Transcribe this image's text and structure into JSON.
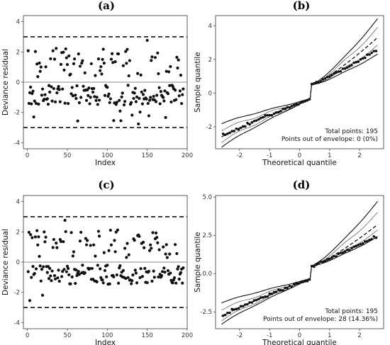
{
  "chart_data": [
    {
      "panel": "(a)",
      "type": "scatter",
      "xlabel": "Index",
      "ylabel": "Deviance residual",
      "xlim": [
        -5,
        200
      ],
      "ylim": [
        -4.4,
        4.4
      ],
      "xticks": [
        0,
        50,
        100,
        150,
        200
      ],
      "yticks": [
        -4,
        -2,
        0,
        2,
        4
      ],
      "reference_lines": [
        {
          "y": 3,
          "style": "dashed"
        },
        {
          "y": -3,
          "style": "dashed"
        },
        {
          "y": 0,
          "style": "solid-gray"
        }
      ],
      "n_points": 195,
      "seed": 11
    },
    {
      "panel": "(b)",
      "type": "line",
      "xlabel": "Theoretical quantile",
      "ylabel": "Sample quantile",
      "xlim": [
        -2.8,
        2.8
      ],
      "ylim": [
        -3.3,
        4.6
      ],
      "xticks": [
        -2,
        -1,
        0,
        1,
        2
      ],
      "yticks": [
        -2,
        0,
        2,
        4
      ],
      "envelope": {
        "lower_end": [
          -1.8,
          2.3
        ],
        "upper_end": [
          -3.2,
          4.4
        ],
        "median_end": [
          -2.6,
          3.3
        ]
      },
      "annotations": [
        "Total points: 195",
        "Points out of envelope: 0 (0%)"
      ],
      "seed": 11
    },
    {
      "panel": "(c)",
      "type": "scatter",
      "xlabel": "Index",
      "ylabel": "Deviance residual",
      "xlim": [
        -5,
        200
      ],
      "ylim": [
        -4.4,
        4.4
      ],
      "xticks": [
        0,
        50,
        100,
        150,
        200
      ],
      "yticks": [
        -4,
        -2,
        0,
        2,
        4
      ],
      "reference_lines": [
        {
          "y": 3,
          "style": "dashed"
        },
        {
          "y": -3,
          "style": "dashed"
        },
        {
          "y": 0,
          "style": "solid-gray"
        }
      ],
      "n_points": 195,
      "seed": 23
    },
    {
      "panel": "(d)",
      "type": "line",
      "xlabel": "Theoretical quantile",
      "ylabel": "Sample quantile",
      "xlim": [
        -2.8,
        2.8
      ],
      "ylim": [
        -3.6,
        5.1
      ],
      "xticks": [
        -2,
        -1,
        0,
        1,
        2
      ],
      "yticks": [
        -2.5,
        0.0,
        2.5,
        5.0
      ],
      "ytick_labels": [
        "-2.5",
        "0.0",
        "2.5",
        "5.0"
      ],
      "envelope": {
        "lower_end": [
          -1.9,
          2.4
        ],
        "upper_end": [
          -3.3,
          4.7
        ],
        "median_end": [
          -2.8,
          3.2
        ]
      },
      "annotations": [
        "Total points: 195",
        "Points out of envelope: 28 (14.36%)"
      ],
      "seed": 23
    }
  ]
}
